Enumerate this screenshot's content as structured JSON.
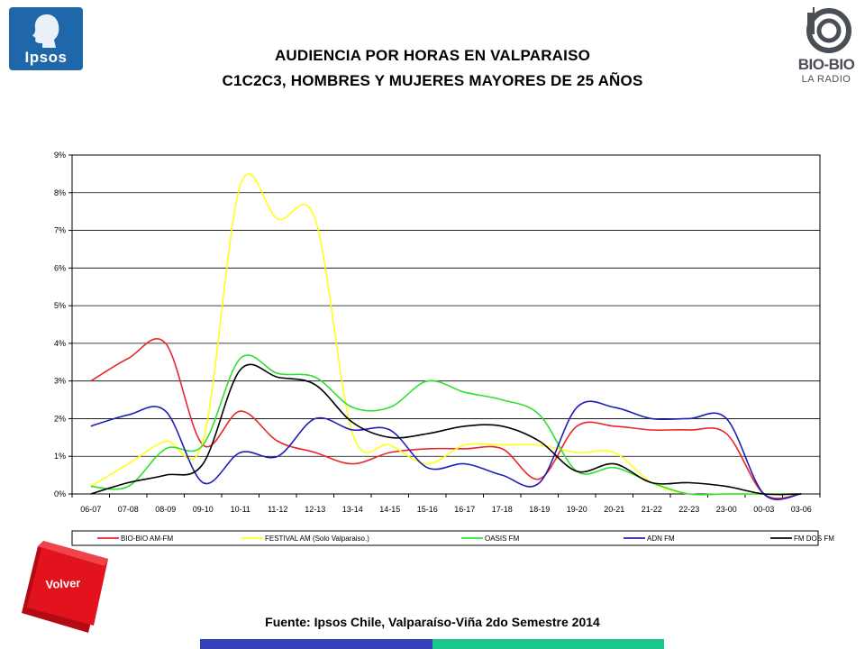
{
  "header": {
    "title_line1": "AUDIENCIA POR HORAS EN VALPARAISO",
    "title_line2": "C1C2C3, HOMBRES Y MUJERES MAYORES DE 25 AÑOS",
    "logo_left": "Ipsos",
    "logo_right_name": "BIO-BIO",
    "logo_right_sub": "LA RADIO"
  },
  "chart_data": {
    "type": "line",
    "categories": [
      "06-07",
      "07-08",
      "08-09",
      "09-10",
      "10-11",
      "11-12",
      "12-13",
      "13-14",
      "14-15",
      "15-16",
      "16-17",
      "17-18",
      "18-19",
      "19-20",
      "20-21",
      "21-22",
      "22-23",
      "23-00",
      "00-03",
      "03-06"
    ],
    "yticks": [
      "0%",
      "1%",
      "2%",
      "3%",
      "4%",
      "5%",
      "6%",
      "7%",
      "8%",
      "9%"
    ],
    "ylim": [
      0,
      9
    ],
    "grid": true,
    "legend_position": "bottom",
    "series": [
      {
        "name": "BIO-BIO AM-FM",
        "color": "#e8262b",
        "values": [
          3.0,
          3.6,
          4.0,
          1.3,
          2.2,
          1.4,
          1.1,
          0.8,
          1.1,
          1.2,
          1.2,
          1.2,
          0.4,
          1.8,
          1.8,
          1.7,
          1.7,
          1.6,
          0.0,
          0.0
        ]
      },
      {
        "name": "FESTIVAL AM (Solo Valparaiso.)",
        "color": "#ffff1a",
        "values": [
          0.2,
          0.8,
          1.4,
          1.4,
          8.2,
          7.3,
          7.3,
          1.6,
          1.3,
          0.8,
          1.3,
          1.3,
          1.3,
          1.1,
          1.1,
          0.3,
          0.0,
          0.0,
          0.0,
          0.0
        ]
      },
      {
        "name": "OASIS FM",
        "color": "#2fe02f",
        "values": [
          0.2,
          0.2,
          1.2,
          1.3,
          3.6,
          3.2,
          3.1,
          2.3,
          2.3,
          3.0,
          2.7,
          2.5,
          2.1,
          0.6,
          0.7,
          0.3,
          0.0,
          0.0,
          0.0,
          0.0
        ]
      },
      {
        "name": "ADN FM",
        "color": "#1f1fb5",
        "values": [
          1.8,
          2.1,
          2.2,
          0.3,
          1.1,
          1.0,
          2.0,
          1.7,
          1.7,
          0.7,
          0.8,
          0.5,
          0.3,
          2.3,
          2.3,
          2.0,
          2.0,
          2.0,
          0.0,
          0.0
        ]
      },
      {
        "name": "FM DOS FM",
        "color": "#000000",
        "values": [
          0.0,
          0.3,
          0.5,
          0.8,
          3.3,
          3.1,
          2.9,
          1.9,
          1.5,
          1.6,
          1.8,
          1.8,
          1.4,
          0.6,
          0.8,
          0.3,
          0.3,
          0.2,
          0.0,
          0.0
        ]
      }
    ]
  },
  "nav": {
    "volver_label": "Volver"
  },
  "footer": {
    "source": "Fuente: Ipsos Chile, Valparaíso-Viña 2do Semestre 2014"
  }
}
